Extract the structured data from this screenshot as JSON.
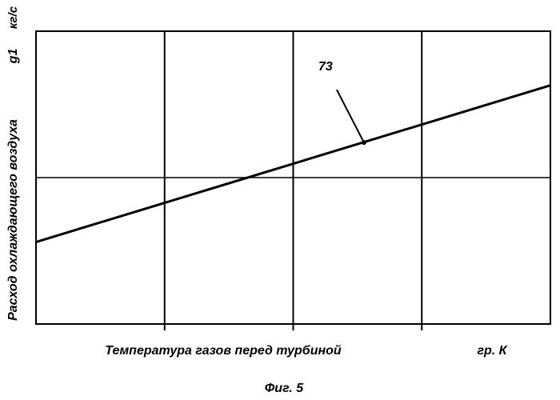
{
  "chart_data": {
    "type": "line",
    "title": "",
    "xlabel": "Температура газов перед турбиной",
    "xunit": "гр. К",
    "ylabel": "Расход охлаждающего воздуха",
    "ysymbol": "g1",
    "yunit": "кг/с",
    "xlim": [
      0,
      4
    ],
    "ylim": [
      0,
      2
    ],
    "grid": true,
    "x_gridlines": [
      1,
      2,
      3
    ],
    "y_gridlines": [
      1
    ],
    "series": [
      {
        "name": "",
        "x": [
          0,
          4
        ],
        "y": [
          0.56,
          1.63
        ],
        "color": "#000000"
      }
    ],
    "annotations": [
      {
        "label": "73",
        "point_x": 2.55,
        "point_y": 1.24
      }
    ]
  },
  "figure": {
    "caption": "Фиг. 5"
  }
}
